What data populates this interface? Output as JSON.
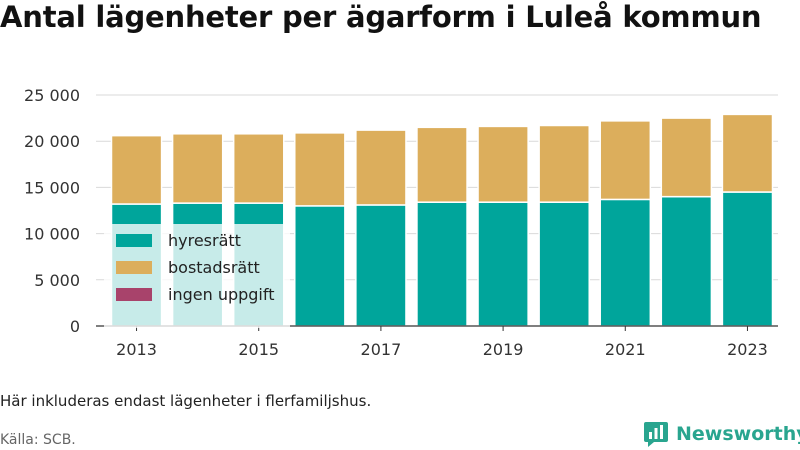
{
  "title": "Antal lägenheter per ägarform i Luleå kommun",
  "note": "Här inkluderas endast lägenheter i flerfamiljshus.",
  "source": "Källa: SCB.",
  "brand": {
    "name": "Newsworthy",
    "icon": "bar-chart-speech-icon",
    "color": "#29a58f"
  },
  "chart_data": {
    "type": "bar",
    "stacked": true,
    "categories": [
      "2013",
      "2014",
      "2015",
      "2016",
      "2017",
      "2018",
      "2019",
      "2020",
      "2021",
      "2022",
      "2023"
    ],
    "x_tick_labels": [
      "2013",
      "2015",
      "2017",
      "2019",
      "2021",
      "2023"
    ],
    "series": [
      {
        "name": "hyresrätt",
        "color": "#00a59b",
        "values": [
          13200,
          13300,
          13300,
          13000,
          13100,
          13400,
          13400,
          13400,
          13700,
          14000,
          14500
        ]
      },
      {
        "name": "bostadsrätt",
        "color": "#dcae5c",
        "values": [
          7400,
          7500,
          7500,
          7900,
          8100,
          8100,
          8200,
          8300,
          8500,
          8500,
          8400
        ]
      },
      {
        "name": "ingen uppgift",
        "color": "#a8436b",
        "values": [
          0,
          0,
          0,
          0,
          0,
          0,
          0,
          0,
          0,
          0,
          0
        ]
      }
    ],
    "ylim": [
      0,
      25000
    ],
    "y_ticks": [
      0,
      5000,
      10000,
      15000,
      20000,
      25000
    ],
    "y_tick_labels": [
      "0",
      "5 000",
      "10 000",
      "15 000",
      "20 000",
      "25 000"
    ],
    "grid": true,
    "legend_position": "lower-left inside plot",
    "xlabel": "",
    "ylabel": ""
  }
}
